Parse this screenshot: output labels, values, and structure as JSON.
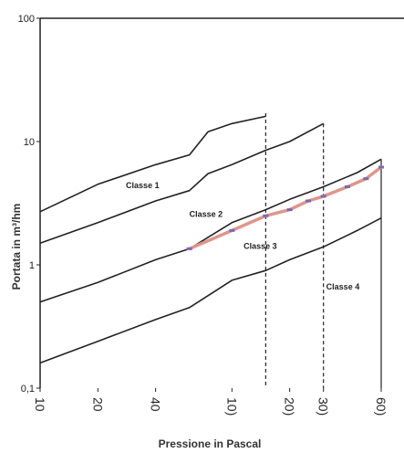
{
  "chart_data": {
    "type": "line",
    "xscale": "log",
    "yscale": "log",
    "xlim": [
      10,
      600
    ],
    "ylim": [
      0.1,
      100
    ],
    "xlabel": "Pressione in Pascal",
    "ylabel": "Portata in m³/hm",
    "y_ticks": [
      "100",
      "10",
      "1",
      "0,1"
    ],
    "x_ticks": [
      {
        "value": 10,
        "label": "10"
      },
      {
        "value": 20,
        "label": "20"
      },
      {
        "value": 40,
        "label": "40"
      },
      {
        "value": 100,
        "label": "10)"
      },
      {
        "value": 200,
        "label": "20)"
      },
      {
        "value": 300,
        "label": "30)"
      },
      {
        "value": 600,
        "label": "60)"
      }
    ],
    "vertical_markers": [
      {
        "x": 150,
        "style": "dashed",
        "y_top": 17
      },
      {
        "x": 300,
        "style": "dashed",
        "y_top": 14
      },
      {
        "x": 600,
        "style": "solid",
        "y_top": 7.2
      }
    ],
    "series": [
      {
        "name": "Classe 1",
        "color": "#222222",
        "x": [
          10,
          20,
          40,
          60,
          75,
          100,
          150
        ],
        "y": [
          2.7,
          4.5,
          6.5,
          7.8,
          12,
          14,
          16
        ]
      },
      {
        "name": "Classe 2",
        "color": "#222222",
        "x": [
          10,
          20,
          40,
          60,
          75,
          100,
          150,
          200,
          300
        ],
        "y": [
          1.5,
          2.2,
          3.3,
          4.0,
          5.5,
          6.5,
          8.5,
          10,
          14
        ]
      },
      {
        "name": "Classe 3",
        "color": "#222222",
        "x": [
          10,
          20,
          40,
          60,
          100,
          150,
          200,
          300,
          450,
          600
        ],
        "y": [
          0.5,
          0.72,
          1.1,
          1.35,
          2.2,
          2.8,
          3.4,
          4.3,
          5.6,
          7.2
        ]
      },
      {
        "name": "Classe 4",
        "color": "#222222",
        "x": [
          10,
          20,
          40,
          60,
          100,
          150,
          200,
          300,
          450,
          600
        ],
        "y": [
          0.16,
          0.24,
          0.36,
          0.45,
          0.75,
          0.9,
          1.1,
          1.4,
          1.9,
          2.4
        ]
      },
      {
        "name": "",
        "color": "#e0958a",
        "marker_color": "#7a6ab0",
        "x": [
          60,
          100,
          150,
          200,
          250,
          300,
          400,
          500,
          600
        ],
        "y": [
          1.35,
          1.9,
          2.5,
          2.8,
          3.3,
          3.6,
          4.3,
          5.0,
          6.2
        ]
      }
    ],
    "annotations": [
      {
        "text": "Classe 1",
        "x": 28,
        "y": 4.2
      },
      {
        "text": "Classe 2",
        "x": 60,
        "y": 2.45
      },
      {
        "text": "Classe 3",
        "x": 115,
        "y": 1.35
      },
      {
        "text": "Classe 4",
        "x": 310,
        "y": 0.63
      }
    ]
  }
}
